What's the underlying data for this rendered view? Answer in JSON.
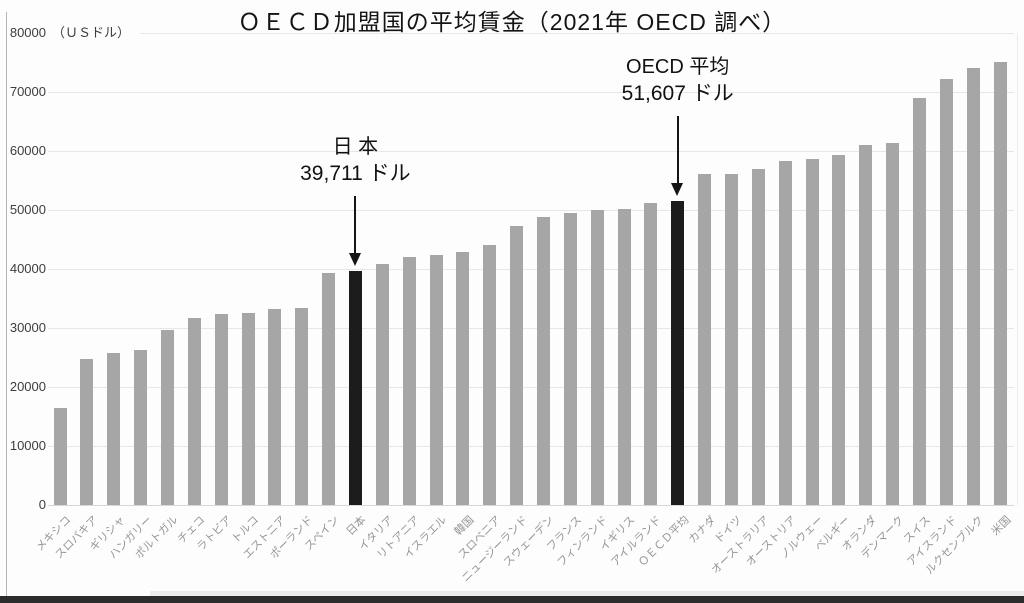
{
  "chart_data": {
    "type": "bar",
    "title": "ＯＥＣＤ加盟国の平均賃金（2021年 OECD 調べ）",
    "unit_label": "（ＵＳドル）",
    "ylabel": "US dollars",
    "ylim": [
      0,
      80000
    ],
    "yticks": [
      0,
      10000,
      20000,
      30000,
      40000,
      50000,
      60000,
      70000,
      80000
    ],
    "grid": true,
    "legend": "none",
    "bar_color": "#a6a6a6",
    "highlight_color": "#1c1c1c",
    "categories": [
      "メキシコ",
      "スロバキア",
      "ギリシャ",
      "ハンガリー",
      "ポルトガル",
      "チェコ",
      "ラトビア",
      "トルコ",
      "エストニア",
      "ポーランド",
      "スペイン",
      "日本",
      "イタリア",
      "リトアニア",
      "イスラエル",
      "韓国",
      "スロベニア",
      "ニュージーランド",
      "スウェーデン",
      "フランス",
      "フィンランド",
      "イギリス",
      "アイルランド",
      "ＯＥＣＤ平均",
      "カナダ",
      "ドイツ",
      "オーストラリア",
      "オーストリア",
      "ノルウェー",
      "ベルギー",
      "オランダ",
      "デンマーク",
      "スイス",
      "アイスランド",
      "ルクセンブルク",
      "米国"
    ],
    "values": [
      16400,
      24700,
      25800,
      26200,
      29700,
      31700,
      32400,
      32500,
      33200,
      33400,
      39400,
      39711,
      40900,
      42100,
      42300,
      42900,
      44100,
      47300,
      48800,
      49500,
      50000,
      50200,
      51200,
      51607,
      56100,
      56100,
      56900,
      58300,
      58600,
      59300,
      61000,
      61400,
      69000,
      72200,
      74000,
      75100
    ],
    "highlight_indices": [
      11,
      23
    ],
    "annotations": [
      {
        "bar_index": 11,
        "line1": "日 本",
        "line2": "39,711 ドル"
      },
      {
        "bar_index": 23,
        "line1": "OECD 平均",
        "line2": "51,607 ドル"
      }
    ]
  }
}
